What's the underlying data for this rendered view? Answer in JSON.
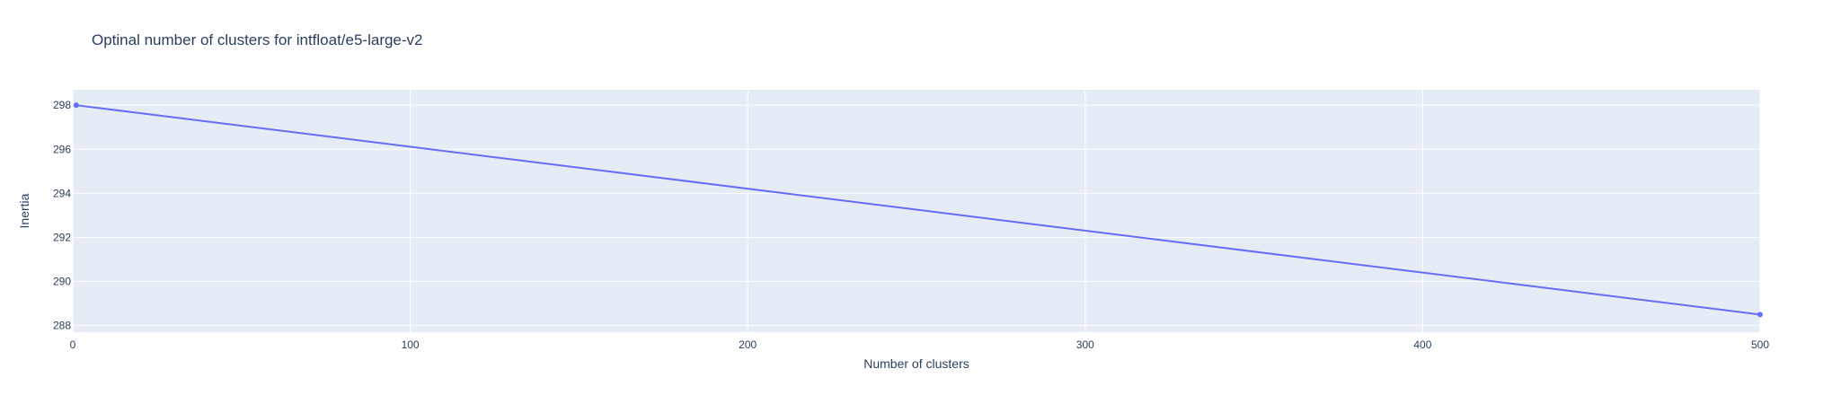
{
  "chart_data": {
    "type": "line",
    "title": "Optinal number of clusters for intfloat/e5-large-v2",
    "xlabel": "Number of clusters",
    "ylabel": "Inertia",
    "x": [
      1,
      500
    ],
    "series": [
      {
        "values": [
          298.0,
          288.5
        ]
      }
    ],
    "xlim": [
      0,
      500
    ],
    "ylim": [
      287.7,
      298.7
    ],
    "xticks": [
      0,
      100,
      200,
      300,
      400,
      500
    ],
    "xtick_labels": [
      "0",
      "100",
      "200",
      "300",
      "400",
      "500"
    ],
    "yticks": [
      288,
      290,
      292,
      294,
      296,
      298
    ],
    "ytick_labels": [
      "288",
      "290",
      "292",
      "294",
      "296",
      "298"
    ],
    "grid": true,
    "colors": {
      "plot_bg": "#e5ecf6",
      "line": "#636efa",
      "grid": "#ffffff",
      "text": "#2a3f5f"
    }
  }
}
